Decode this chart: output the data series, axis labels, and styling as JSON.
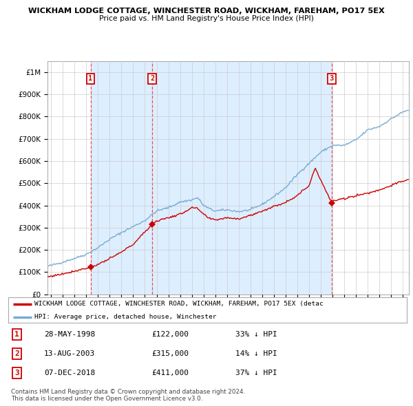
{
  "title1": "WICKHAM LODGE COTTAGE, WINCHESTER ROAD, WICKHAM, FAREHAM, PO17 5EX",
  "title2": "Price paid vs. HM Land Registry's House Price Index (HPI)",
  "ytick_values": [
    0,
    100000,
    200000,
    300000,
    400000,
    500000,
    600000,
    700000,
    800000,
    900000,
    1000000
  ],
  "xlim_start": 1994.7,
  "xlim_end": 2025.5,
  "ylim_min": 0,
  "ylim_max": 1050000,
  "sale_dates": [
    1998.37,
    2003.62,
    2018.92
  ],
  "sale_prices": [
    122000,
    315000,
    411000
  ],
  "sale_labels": [
    "1",
    "2",
    "3"
  ],
  "sale_info": [
    {
      "num": "1",
      "date": "28-MAY-1998",
      "price": "£122,000",
      "pct": "33% ↓ HPI"
    },
    {
      "num": "2",
      "date": "13-AUG-2003",
      "price": "£315,000",
      "pct": "14% ↓ HPI"
    },
    {
      "num": "3",
      "date": "07-DEC-2018",
      "price": "£411,000",
      "pct": "37% ↓ HPI"
    }
  ],
  "legend_red": "WICKHAM LODGE COTTAGE, WINCHESTER ROAD, WICKHAM, FAREHAM, PO17 5EX (detac",
  "legend_blue": "HPI: Average price, detached house, Winchester",
  "footer1": "Contains HM Land Registry data © Crown copyright and database right 2024.",
  "footer2": "This data is licensed under the Open Government Licence v3.0.",
  "bg_color": "#ffffff",
  "grid_color": "#cccccc",
  "red_color": "#cc0000",
  "blue_color": "#7aabcf",
  "shade_color": "#ddeeff",
  "dashed_color": "#dd4444",
  "hpi_anchors_x": [
    1994.7,
    1995,
    1996,
    1997,
    1998,
    1999,
    2000,
    2001,
    2002,
    2003,
    2004,
    2005,
    2006,
    2007,
    2007.5,
    2008,
    2008.5,
    2009,
    2010,
    2011,
    2012,
    2013,
    2014,
    2015,
    2016,
    2017,
    2018,
    2019,
    2020,
    2021,
    2022,
    2023,
    2024,
    2025,
    2025.5
  ],
  "hpi_anchors_y": [
    127000,
    130000,
    145000,
    162000,
    180000,
    210000,
    248000,
    278000,
    305000,
    332000,
    375000,
    390000,
    415000,
    425000,
    435000,
    400000,
    385000,
    375000,
    380000,
    372000,
    380000,
    405000,
    440000,
    480000,
    540000,
    590000,
    640000,
    670000,
    670000,
    695000,
    740000,
    755000,
    790000,
    820000,
    830000
  ],
  "red_anchors_x": [
    1994.7,
    1995,
    1996,
    1997,
    1998.37,
    1999,
    2000,
    2001,
    2002,
    2003.62,
    2004,
    2005,
    2006,
    2007,
    2007.5,
    2008,
    2008.5,
    2009,
    2010,
    2011,
    2012,
    2013,
    2014,
    2015,
    2016,
    2017,
    2017.5,
    2018.92,
    2019,
    2020,
    2021,
    2022,
    2023,
    2024,
    2025,
    2025.5
  ],
  "red_anchors_y": [
    78000,
    82000,
    92000,
    105000,
    122000,
    135000,
    160000,
    190000,
    225000,
    315000,
    330000,
    345000,
    360000,
    390000,
    385000,
    360000,
    340000,
    335000,
    345000,
    340000,
    355000,
    375000,
    395000,
    415000,
    445000,
    490000,
    570000,
    411000,
    420000,
    430000,
    445000,
    455000,
    470000,
    490000,
    510000,
    515000
  ]
}
